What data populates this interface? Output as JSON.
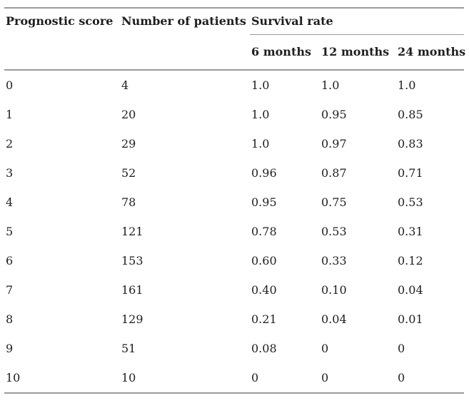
{
  "table": {
    "header": {
      "prognostic_score": "Prognostic score",
      "number_of_patients": "Number of patients",
      "survival_rate": "Survival rate",
      "months": [
        "6 months",
        "12 months",
        "24 months"
      ]
    },
    "rows": [
      [
        "0",
        "4",
        "1.0",
        "1.0",
        "1.0"
      ],
      [
        "1",
        "20",
        "1.0",
        "0.95",
        "0.85"
      ],
      [
        "2",
        "29",
        "1.0",
        "0.97",
        "0.83"
      ],
      [
        "3",
        "52",
        "0.96",
        "0.87",
        "0.71"
      ],
      [
        "4",
        "78",
        "0.95",
        "0.75",
        "0.53"
      ],
      [
        "5",
        "121",
        "0.78",
        "0.53",
        "0.31"
      ],
      [
        "6",
        "153",
        "0.60",
        "0.33",
        "0.12"
      ],
      [
        "7",
        "161",
        "0.40",
        "0.10",
        "0.04"
      ],
      [
        "8",
        "129",
        "0.21",
        "0.04",
        "0.01"
      ],
      [
        "9",
        "51",
        "0.08",
        "0",
        "0"
      ],
      [
        "10",
        "10",
        "0",
        "0",
        "0"
      ]
    ]
  },
  "colors": {
    "rule": "#9b9b9b",
    "text": "#1e1e1e",
    "background": "#ffffff"
  }
}
